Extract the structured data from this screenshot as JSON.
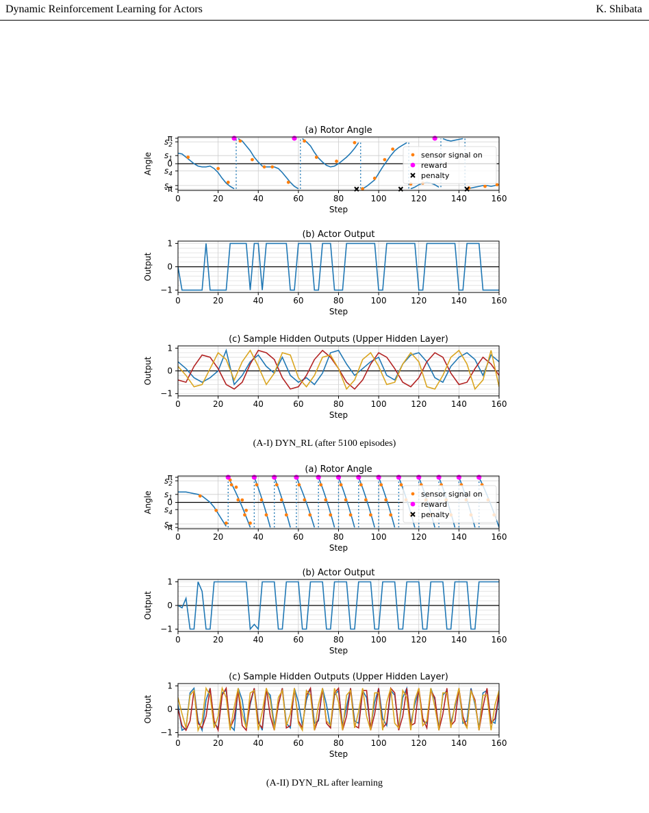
{
  "header": {
    "title": "Dynamic Reinforcement Learning for Actors",
    "author": "K. Shibata"
  },
  "captions": {
    "figure_a1": "(A-I) DYN_RL (after 5100 episodes)",
    "figure_a2": "(A-II) DYN_RL after learning"
  },
  "colors": {
    "line": "#1f77b4",
    "sensor": "#ff7f0e",
    "reward": "#ff00ff",
    "penalty": "#000000",
    "hidden": [
      "#1f77b4",
      "#b22222",
      "#daa520"
    ]
  },
  "chart_data": [
    {
      "group": "A-I",
      "type": "line",
      "title": "(a) Rotor Angle",
      "xlabel": "Step",
      "ylabel": "Angle",
      "xlim": [
        0,
        160
      ],
      "ylim": [
        -3.3,
        3.3
      ],
      "xticks": [
        0,
        20,
        40,
        60,
        80,
        100,
        120,
        140,
        160
      ],
      "yticklabels": [
        "π",
        "s2",
        "s1",
        "0",
        "s4",
        "s3",
        "-π"
      ],
      "legend": {
        "placement": "right",
        "entries": [
          "sensor signal on",
          "reward",
          "penalty"
        ]
      },
      "x": [
        0,
        2,
        4,
        6,
        8,
        10,
        12,
        14,
        16,
        18,
        20,
        22,
        24,
        26,
        28,
        30,
        32,
        34,
        36,
        38,
        40,
        42,
        44,
        46,
        48,
        50,
        52,
        54,
        56,
        58,
        60,
        62,
        64,
        66,
        68,
        70,
        72,
        74,
        76,
        78,
        80,
        82,
        84,
        86,
        88,
        90,
        92,
        94,
        96,
        98,
        100,
        102,
        104,
        106,
        108,
        110,
        112,
        114,
        116,
        118,
        120,
        122,
        124,
        126,
        128,
        130,
        132,
        134,
        136,
        138,
        140,
        142,
        144,
        146,
        148,
        150,
        152,
        154,
        156,
        158,
        160
      ],
      "series": [
        {
          "values": [
            1.3,
            1.2,
            0.8,
            0.4,
            0,
            -0.3,
            -0.4,
            -0.4,
            -0.3,
            -0.6,
            -1.1,
            -1.8,
            -2.4,
            -2.8,
            -3.1,
            3.1,
            2.8,
            2.2,
            1.6,
            0.8,
            0.2,
            -0.3,
            -0.4,
            -0.4,
            -0.4,
            -0.6,
            -1.1,
            -1.7,
            -2.3,
            -2.8,
            -3.1,
            3.1,
            2.7,
            2.2,
            1.4,
            0.7,
            0.2,
            -0.2,
            -0.4,
            -0.3,
            0,
            0.4,
            0.8,
            1.3,
            1.9,
            2.6,
            -3.1,
            -2.8,
            -2.4,
            -2,
            -1.2,
            -0.4,
            0.3,
            1,
            1.6,
            2,
            2.3,
            2.6,
            -3.1,
            -2.9,
            -2.6,
            -2.4,
            -2.3,
            -2.4,
            -2.6,
            -2.9,
            3.1,
            2.9,
            2.8,
            2.9,
            3.0,
            3.1,
            -3.1,
            -3.0,
            -2.9,
            -2.8,
            -2.7,
            -2.7,
            -2.8,
            -2.7,
            -2.6
          ]
        }
      ],
      "sensor_points": [
        [
          5,
          0.8
        ],
        [
          20,
          -0.6
        ],
        [
          25,
          -2.3
        ],
        [
          31,
          2.8
        ],
        [
          37,
          0.5
        ],
        [
          43,
          -0.4
        ],
        [
          47,
          -0.4
        ],
        [
          55,
          -2.3
        ],
        [
          63,
          2.8
        ],
        [
          69,
          0.8
        ],
        [
          79,
          0.3
        ],
        [
          88,
          2.6
        ],
        [
          92,
          -3.1
        ],
        [
          98,
          -1.8
        ],
        [
          103,
          0.5
        ],
        [
          107,
          1.8
        ],
        [
          116,
          -2.5
        ],
        [
          122,
          -2.4
        ],
        [
          145,
          -3.0
        ],
        [
          153,
          -2.8
        ],
        [
          159,
          -2.6
        ]
      ],
      "reward_x": [
        28,
        58,
        128
      ],
      "penalty_x": [
        89,
        111,
        144
      ]
    },
    {
      "group": "A-I",
      "type": "line",
      "title": "(b) Actor Output",
      "xlabel": "Step",
      "ylabel": "Output",
      "xlim": [
        0,
        160
      ],
      "ylim": [
        -1.1,
        1.1
      ],
      "yticklabels": [
        "1",
        "0",
        "−1"
      ],
      "x_step": 2,
      "series": [
        {
          "values": [
            0,
            -1,
            -1,
            -1,
            -1,
            -1,
            -1,
            1,
            -1,
            -1,
            -1,
            -1,
            -1,
            1,
            1,
            1,
            1,
            1,
            -1,
            1,
            1,
            -1,
            1,
            1,
            1,
            1,
            1,
            1,
            -1,
            -1,
            1,
            1,
            1,
            1,
            -1,
            -1,
            1,
            1,
            1,
            -1,
            -1,
            -1,
            1,
            1,
            1,
            1,
            1,
            1,
            1,
            1,
            -1,
            -1,
            1,
            1,
            1,
            1,
            1,
            1,
            1,
            1,
            -1,
            -1,
            1,
            1,
            1,
            1,
            1,
            1,
            1,
            1,
            -1,
            -1,
            1,
            1,
            1,
            1,
            -1,
            -1,
            -1,
            -1,
            -1
          ]
        }
      ]
    },
    {
      "group": "A-I",
      "type": "line",
      "title": "(c) Sample Hidden Outputs (Upper Hidden Layer)",
      "xlabel": "Step",
      "ylabel": "Output",
      "xlim": [
        0,
        160
      ],
      "ylim": [
        -1.1,
        1.1
      ],
      "yticklabels": [
        "1",
        "0",
        "−1"
      ],
      "x_step": 4,
      "series": [
        {
          "values": [
            0.4,
            0.1,
            -0.3,
            -0.5,
            -0.3,
            0,
            0.9,
            -0.6,
            -0.2,
            0.4,
            0.7,
            0.2,
            -0.1,
            0.6,
            -0.2,
            -0.5,
            -0.3,
            -0.6,
            -0.1,
            0.8,
            0.9,
            0.3,
            -0.2,
            0.1,
            0.4,
            0.6,
            -0.2,
            -0.4,
            0.3,
            0.7,
            0.8,
            0.4,
            -0.3,
            -0.5,
            0.2,
            0.6,
            0.8,
            0.5,
            -0.2,
            0.7,
            0.4
          ]
        },
        {
          "values": [
            -0.4,
            -0.5,
            0.2,
            0.7,
            0.6,
            0.1,
            -0.6,
            -0.8,
            -0.5,
            0.3,
            0.9,
            0.8,
            0.5,
            -0.3,
            -0.8,
            -0.7,
            -0.2,
            0.5,
            0.9,
            0.6,
            0.1,
            -0.5,
            -0.8,
            -0.4,
            0.3,
            0.8,
            0.6,
            0.1,
            -0.5,
            -0.7,
            -0.3,
            0.4,
            0.8,
            0.6,
            -0.1,
            -0.6,
            -0.5,
            0.1,
            0.6,
            0.3,
            -0.2
          ]
        },
        {
          "values": [
            0.2,
            -0.2,
            -0.7,
            -0.6,
            0.1,
            0.8,
            0.5,
            -0.4,
            0.4,
            0.9,
            0.2,
            -0.6,
            -0.1,
            0.8,
            0.7,
            -0.3,
            -0.7,
            -0.2,
            0.6,
            0.7,
            0.1,
            -0.8,
            -0.4,
            0.5,
            0.8,
            0.2,
            -0.6,
            -0.5,
            0.3,
            0.8,
            0.4,
            -0.7,
            -0.8,
            -0.2,
            0.6,
            0.9,
            0.3,
            -0.8,
            -0.4,
            0.9,
            -0.7
          ]
        }
      ]
    },
    {
      "group": "A-II",
      "type": "line",
      "title": "(a) Rotor Angle",
      "xlabel": "Step",
      "ylabel": "Angle",
      "xlim": [
        0,
        160
      ],
      "ylim": [
        -3.3,
        3.3
      ],
      "legend": {
        "placement": "right",
        "entries": [
          "sensor signal on",
          "reward",
          "penalty"
        ]
      },
      "x": [
        0,
        2,
        4,
        6,
        8,
        10,
        12,
        14,
        16,
        18,
        20,
        22,
        24
      ],
      "series": [
        {
          "values": [
            1.3,
            1.3,
            1.3,
            1.2,
            1.1,
            1.0,
            0.8,
            0.4,
            0,
            -0.6,
            -1.4,
            -2.2,
            -3.0
          ]
        }
      ],
      "descents": [
        [
          25,
          36
        ],
        [
          38,
          46
        ],
        [
          48,
          56
        ],
        [
          59,
          68
        ],
        [
          70,
          78
        ],
        [
          80,
          88
        ],
        [
          90,
          98
        ],
        [
          100,
          108
        ],
        [
          110,
          118
        ],
        [
          120,
          128
        ],
        [
          130,
          138
        ],
        [
          140,
          148
        ],
        [
          150,
          160
        ]
      ],
      "reward_x": [
        25,
        38,
        48,
        59,
        70,
        80,
        90,
        100,
        110,
        120,
        130,
        140,
        150
      ],
      "sensor_points": [
        [
          11,
          0.8
        ],
        [
          19,
          -1.0
        ],
        [
          24,
          -2.6
        ],
        [
          26,
          2.8
        ],
        [
          29,
          1.9
        ],
        [
          32,
          0.3
        ],
        [
          34,
          -1.0
        ],
        [
          36,
          -2.6
        ]
      ]
    },
    {
      "group": "A-II",
      "type": "line",
      "title": "(b) Actor Output",
      "xlabel": "Step",
      "ylabel": "Output",
      "xlim": [
        0,
        160
      ],
      "ylim": [
        -1.1,
        1.1
      ],
      "yticklabels": [
        "1",
        "0",
        "−1"
      ],
      "x_step": 2,
      "series": [
        {
          "values": [
            0,
            -0.1,
            0.3,
            -1,
            -1,
            1,
            0.6,
            -1,
            -1,
            1,
            1,
            1,
            1,
            1,
            1,
            1,
            1,
            1,
            -1,
            -0.8,
            -1,
            1,
            1,
            1,
            1,
            -1,
            -1,
            1,
            1,
            1,
            1,
            -1,
            -1,
            1,
            1,
            1,
            1,
            -1,
            -1,
            1,
            1,
            1,
            1,
            -1,
            -1,
            1,
            1,
            1,
            1,
            -1,
            -1,
            1,
            1,
            1,
            1,
            -1,
            -1,
            1,
            1,
            1,
            1,
            -1,
            -1,
            1,
            1,
            1,
            1,
            -1,
            -1,
            1,
            1,
            1,
            1,
            -1,
            -1,
            1,
            1,
            1,
            1,
            1,
            1
          ]
        }
      ]
    },
    {
      "group": "A-II",
      "type": "line",
      "title": "(c) Sample Hidden Outputs (Upper Hidden Layer)",
      "xlabel": "Step",
      "ylabel": "Output",
      "xlim": [
        0,
        160
      ],
      "ylim": [
        -1.1,
        1.1
      ],
      "yticklabels": [
        "1",
        "0",
        "−1"
      ],
      "x_step": 2,
      "series": [
        {
          "values": [
            0.2,
            -0.9,
            -0.8,
            0.7,
            0.9,
            -0.5,
            -0.9,
            0.4,
            0.9,
            -0.6,
            -0.8,
            0.7,
            0.8,
            -0.7,
            -0.9,
            0.9,
            0.4,
            -0.8,
            0.2,
            0.9,
            -0.5,
            -0.9,
            0.8,
            0.6,
            -0.7,
            0.2,
            0.9,
            -0.6,
            -0.8,
            0.9,
            0.3,
            -0.7,
            0.4,
            0.9,
            -0.6,
            -0.5,
            0.9,
            0.2,
            -0.8,
            0.6,
            0.8,
            -0.7,
            0.1,
            0.9,
            -0.5,
            -0.6,
            0.8,
            0.5,
            -0.8,
            0.3,
            0.9,
            -0.4,
            -0.7,
            0.8,
            0.6,
            -0.8,
            0.5,
            0.9,
            -0.6,
            0.2,
            0.8,
            -0.5,
            -0.6,
            0.9,
            0.4,
            -0.8,
            0.6,
            0.8,
            -0.6,
            0.1,
            0.9,
            -0.6,
            -0.5,
            0.9,
            0.2,
            -0.8,
            0.7,
            0.8,
            -0.5,
            -0.6,
            0.6
          ]
        },
        {
          "values": [
            0,
            -0.7,
            -0.9,
            -0.5,
            0.8,
            -0.6,
            -0.8,
            -0.3,
            0.9,
            -0.5,
            -0.9,
            0.6,
            0.9,
            -0.8,
            -0.4,
            0.8,
            -0.7,
            -0.9,
            0.3,
            0.9,
            -0.6,
            -0.8,
            0.9,
            -0.3,
            -0.9,
            0.2,
            0.9,
            -0.8,
            -0.7,
            0.9,
            -0.5,
            -0.8,
            0.6,
            0.9,
            -0.9,
            -0.4,
            0.9,
            -0.6,
            -0.8,
            0.7,
            0.9,
            -0.9,
            -0.3,
            0.9,
            -0.7,
            -0.8,
            0.8,
            0.8,
            -0.9,
            -0.2,
            0.9,
            -0.8,
            -0.6,
            0.9,
            0.7,
            -0.9,
            -0.3,
            0.9,
            -0.7,
            -0.6,
            0.9,
            -0.4,
            -0.8,
            0.8,
            0.5,
            -0.9,
            -0.2,
            0.9,
            -0.7,
            -0.5,
            0.9,
            -0.3,
            -0.8,
            0.8,
            0.4,
            -0.9,
            0.1,
            0.9,
            -0.6,
            -0.4,
            0.7
          ]
        },
        {
          "values": [
            0.5,
            -0.2,
            -0.8,
            0.6,
            0.8,
            -0.9,
            -0.5,
            0.9,
            0.6,
            -0.8,
            -0.3,
            0.9,
            0.5,
            -0.9,
            0.1,
            0.9,
            -0.2,
            -0.8,
            0.7,
            0.8,
            -0.9,
            -0.1,
            0.9,
            0.4,
            -0.9,
            0.5,
            0.8,
            -0.7,
            -0.2,
            0.9,
            -0.6,
            -0.9,
            0.8,
            0.6,
            -0.9,
            0.2,
            0.9,
            -0.5,
            -0.7,
            0.9,
            0.3,
            -0.9,
            0.6,
            0.8,
            -0.8,
            -0.1,
            0.9,
            -0.3,
            -0.9,
            0.7,
            0.7,
            -0.9,
            0.3,
            0.9,
            -0.6,
            -0.8,
            0.8,
            0.5,
            -0.9,
            0.4,
            0.9,
            -0.7,
            -0.5,
            0.9,
            0.1,
            -0.9,
            0.7,
            0.7,
            -0.8,
            0.2,
            0.9,
            -0.5,
            -0.8,
            0.8,
            0.3,
            -0.9,
            0.6,
            0.6,
            -0.9,
            0.2,
            0.8
          ]
        }
      ]
    }
  ]
}
